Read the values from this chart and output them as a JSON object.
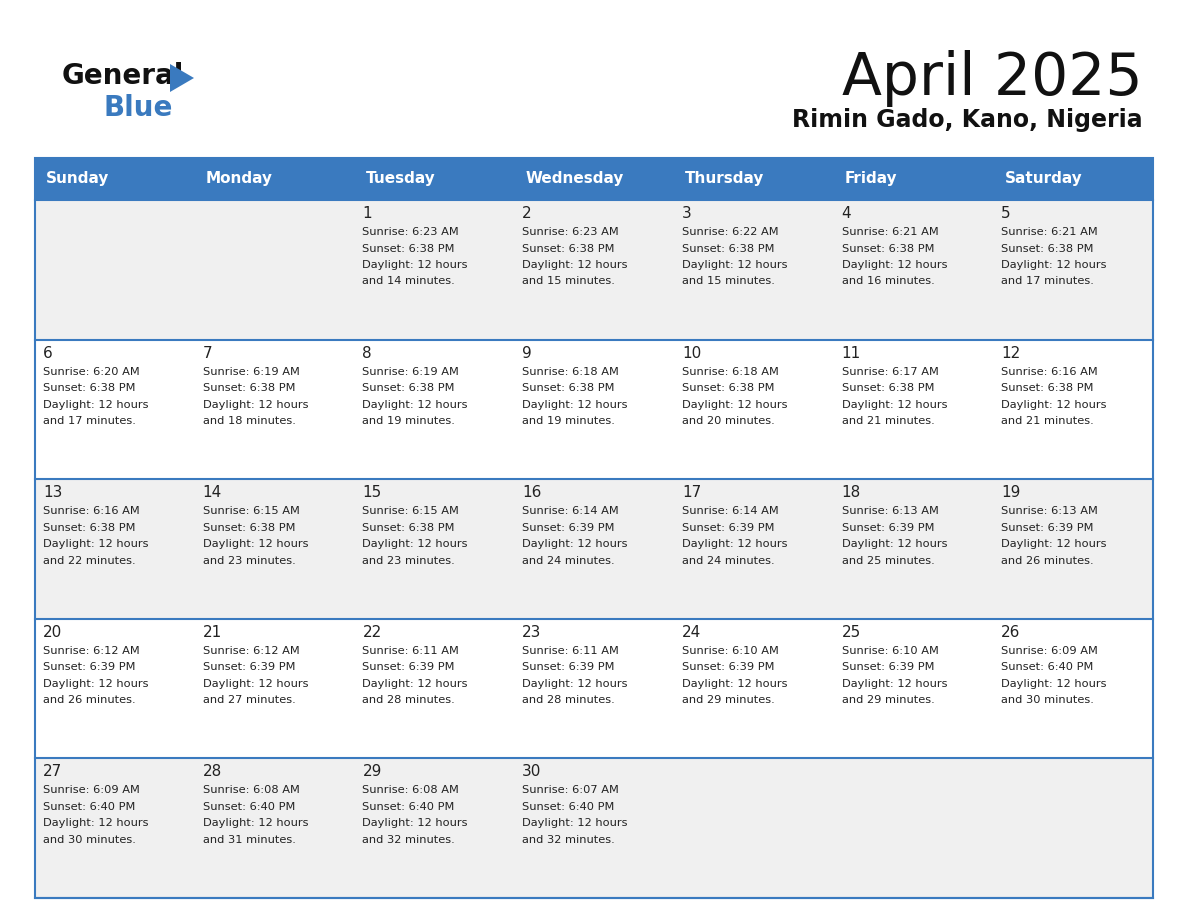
{
  "title": "April 2025",
  "subtitle": "Rimin Gado, Kano, Nigeria",
  "header_bg_color": "#3a7abf",
  "header_text_color": "#ffffff",
  "weekdays": [
    "Sunday",
    "Monday",
    "Tuesday",
    "Wednesday",
    "Thursday",
    "Friday",
    "Saturday"
  ],
  "row_bg_even": "#f0f0f0",
  "row_bg_odd": "#ffffff",
  "border_color": "#3a7abf",
  "text_color": "#222222",
  "logo_general_color": "#111111",
  "logo_blue_color": "#3a7abf",
  "days": [
    {
      "day": 1,
      "col": 2,
      "row": 0,
      "sunrise": "6:23 AM",
      "sunset": "6:38 PM",
      "daylight_hours": 12,
      "daylight_minutes": 14
    },
    {
      "day": 2,
      "col": 3,
      "row": 0,
      "sunrise": "6:23 AM",
      "sunset": "6:38 PM",
      "daylight_hours": 12,
      "daylight_minutes": 15
    },
    {
      "day": 3,
      "col": 4,
      "row": 0,
      "sunrise": "6:22 AM",
      "sunset": "6:38 PM",
      "daylight_hours": 12,
      "daylight_minutes": 15
    },
    {
      "day": 4,
      "col": 5,
      "row": 0,
      "sunrise": "6:21 AM",
      "sunset": "6:38 PM",
      "daylight_hours": 12,
      "daylight_minutes": 16
    },
    {
      "day": 5,
      "col": 6,
      "row": 0,
      "sunrise": "6:21 AM",
      "sunset": "6:38 PM",
      "daylight_hours": 12,
      "daylight_minutes": 17
    },
    {
      "day": 6,
      "col": 0,
      "row": 1,
      "sunrise": "6:20 AM",
      "sunset": "6:38 PM",
      "daylight_hours": 12,
      "daylight_minutes": 17
    },
    {
      "day": 7,
      "col": 1,
      "row": 1,
      "sunrise": "6:19 AM",
      "sunset": "6:38 PM",
      "daylight_hours": 12,
      "daylight_minutes": 18
    },
    {
      "day": 8,
      "col": 2,
      "row": 1,
      "sunrise": "6:19 AM",
      "sunset": "6:38 PM",
      "daylight_hours": 12,
      "daylight_minutes": 19
    },
    {
      "day": 9,
      "col": 3,
      "row": 1,
      "sunrise": "6:18 AM",
      "sunset": "6:38 PM",
      "daylight_hours": 12,
      "daylight_minutes": 19
    },
    {
      "day": 10,
      "col": 4,
      "row": 1,
      "sunrise": "6:18 AM",
      "sunset": "6:38 PM",
      "daylight_hours": 12,
      "daylight_minutes": 20
    },
    {
      "day": 11,
      "col": 5,
      "row": 1,
      "sunrise": "6:17 AM",
      "sunset": "6:38 PM",
      "daylight_hours": 12,
      "daylight_minutes": 21
    },
    {
      "day": 12,
      "col": 6,
      "row": 1,
      "sunrise": "6:16 AM",
      "sunset": "6:38 PM",
      "daylight_hours": 12,
      "daylight_minutes": 21
    },
    {
      "day": 13,
      "col": 0,
      "row": 2,
      "sunrise": "6:16 AM",
      "sunset": "6:38 PM",
      "daylight_hours": 12,
      "daylight_minutes": 22
    },
    {
      "day": 14,
      "col": 1,
      "row": 2,
      "sunrise": "6:15 AM",
      "sunset": "6:38 PM",
      "daylight_hours": 12,
      "daylight_minutes": 23
    },
    {
      "day": 15,
      "col": 2,
      "row": 2,
      "sunrise": "6:15 AM",
      "sunset": "6:38 PM",
      "daylight_hours": 12,
      "daylight_minutes": 23
    },
    {
      "day": 16,
      "col": 3,
      "row": 2,
      "sunrise": "6:14 AM",
      "sunset": "6:39 PM",
      "daylight_hours": 12,
      "daylight_minutes": 24
    },
    {
      "day": 17,
      "col": 4,
      "row": 2,
      "sunrise": "6:14 AM",
      "sunset": "6:39 PM",
      "daylight_hours": 12,
      "daylight_minutes": 24
    },
    {
      "day": 18,
      "col": 5,
      "row": 2,
      "sunrise": "6:13 AM",
      "sunset": "6:39 PM",
      "daylight_hours": 12,
      "daylight_minutes": 25
    },
    {
      "day": 19,
      "col": 6,
      "row": 2,
      "sunrise": "6:13 AM",
      "sunset": "6:39 PM",
      "daylight_hours": 12,
      "daylight_minutes": 26
    },
    {
      "day": 20,
      "col": 0,
      "row": 3,
      "sunrise": "6:12 AM",
      "sunset": "6:39 PM",
      "daylight_hours": 12,
      "daylight_minutes": 26
    },
    {
      "day": 21,
      "col": 1,
      "row": 3,
      "sunrise": "6:12 AM",
      "sunset": "6:39 PM",
      "daylight_hours": 12,
      "daylight_minutes": 27
    },
    {
      "day": 22,
      "col": 2,
      "row": 3,
      "sunrise": "6:11 AM",
      "sunset": "6:39 PM",
      "daylight_hours": 12,
      "daylight_minutes": 28
    },
    {
      "day": 23,
      "col": 3,
      "row": 3,
      "sunrise": "6:11 AM",
      "sunset": "6:39 PM",
      "daylight_hours": 12,
      "daylight_minutes": 28
    },
    {
      "day": 24,
      "col": 4,
      "row": 3,
      "sunrise": "6:10 AM",
      "sunset": "6:39 PM",
      "daylight_hours": 12,
      "daylight_minutes": 29
    },
    {
      "day": 25,
      "col": 5,
      "row": 3,
      "sunrise": "6:10 AM",
      "sunset": "6:39 PM",
      "daylight_hours": 12,
      "daylight_minutes": 29
    },
    {
      "day": 26,
      "col": 6,
      "row": 3,
      "sunrise": "6:09 AM",
      "sunset": "6:40 PM",
      "daylight_hours": 12,
      "daylight_minutes": 30
    },
    {
      "day": 27,
      "col": 0,
      "row": 4,
      "sunrise": "6:09 AM",
      "sunset": "6:40 PM",
      "daylight_hours": 12,
      "daylight_minutes": 30
    },
    {
      "day": 28,
      "col": 1,
      "row": 4,
      "sunrise": "6:08 AM",
      "sunset": "6:40 PM",
      "daylight_hours": 12,
      "daylight_minutes": 31
    },
    {
      "day": 29,
      "col": 2,
      "row": 4,
      "sunrise": "6:08 AM",
      "sunset": "6:40 PM",
      "daylight_hours": 12,
      "daylight_minutes": 32
    },
    {
      "day": 30,
      "col": 3,
      "row": 4,
      "sunrise": "6:07 AM",
      "sunset": "6:40 PM",
      "daylight_hours": 12,
      "daylight_minutes": 32
    }
  ]
}
